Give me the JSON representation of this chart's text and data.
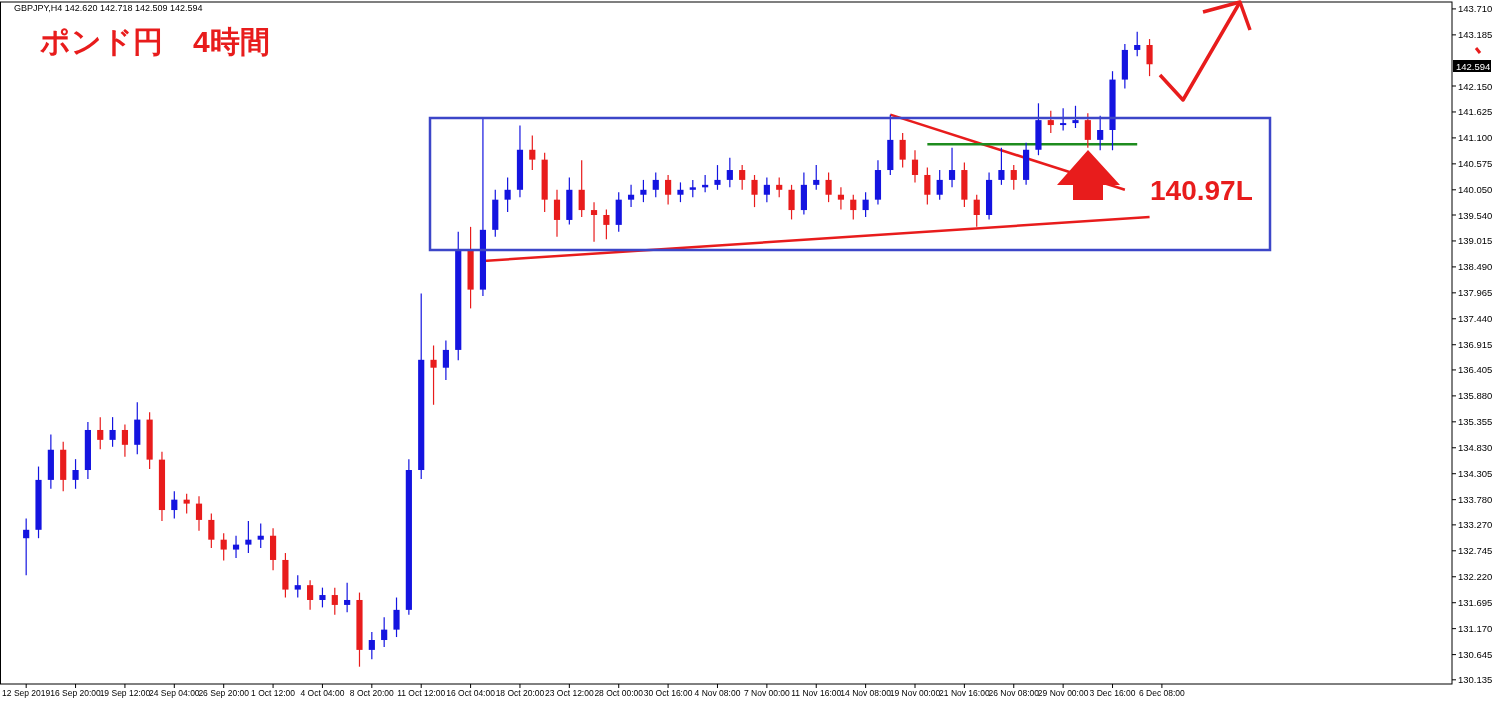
{
  "chart_data": {
    "type": "candlestick",
    "title": "ポンド円　4時間",
    "annotations": [
      "GBPJPY,H4  142.620 142.718 142.509 142.594",
      "140.97L",
      "142.594"
    ],
    "categories": [
      "12 Sep 2019",
      null,
      null,
      null,
      "16 Sep 20:00",
      null,
      null,
      null,
      "19 Sep 12:00",
      null,
      null,
      null,
      "24 Sep 04:00",
      null,
      null,
      null,
      "26 Sep 20:00",
      null,
      null,
      null,
      "1 Oct 12:00",
      null,
      null,
      null,
      "4 Oct 04:00",
      null,
      null,
      null,
      "8 Oct 20:00",
      null,
      null,
      null,
      "11 Oct 12:00",
      null,
      null,
      null,
      "16 Oct 04:00",
      null,
      null,
      null,
      "18 Oct 20:00",
      null,
      null,
      null,
      "23 Oct 12:00",
      null,
      null,
      null,
      "28 Oct 00:00",
      null,
      null,
      null,
      "30 Oct 16:00",
      null,
      null,
      null,
      "4 Nov 08:00",
      null,
      null,
      null,
      "7 Nov 00:00",
      null,
      null,
      null,
      "11 Nov 16:00",
      null,
      null,
      null,
      "14 Nov 08:00",
      null,
      null,
      null,
      "19 Nov 00:00",
      null,
      null,
      null,
      "21 Nov 16:00",
      null,
      null,
      null,
      "26 Nov 08:00",
      null,
      null,
      null,
      "29 Nov 00:00",
      null,
      null,
      null,
      "3 Dec 16:00",
      null,
      null,
      null,
      "6 Dec 08:00",
      null,
      null,
      null,
      null,
      null,
      null,
      null,
      null,
      null,
      null,
      null,
      null,
      null,
      null,
      null,
      null,
      null,
      null,
      null,
      null,
      null,
      null,
      null
    ],
    "ohlc": [
      [
        133.0,
        133.4,
        132.25,
        133.17
      ],
      [
        133.17,
        134.45,
        133.0,
        134.18
      ],
      [
        134.18,
        135.1,
        134.0,
        134.79
      ],
      [
        134.79,
        134.95,
        133.95,
        134.18
      ],
      [
        134.18,
        134.6,
        134.0,
        134.38
      ],
      [
        134.38,
        135.35,
        134.2,
        135.19
      ],
      [
        135.19,
        135.45,
        134.8,
        134.99
      ],
      [
        134.99,
        135.45,
        134.85,
        135.19
      ],
      [
        135.19,
        135.3,
        134.65,
        134.89
      ],
      [
        134.89,
        135.75,
        134.7,
        135.4
      ],
      [
        135.4,
        135.55,
        134.4,
        134.59
      ],
      [
        134.59,
        134.75,
        133.35,
        133.57
      ],
      [
        133.57,
        133.95,
        133.4,
        133.78
      ],
      [
        133.78,
        133.9,
        133.5,
        133.7
      ],
      [
        133.7,
        133.85,
        133.15,
        133.37
      ],
      [
        133.37,
        133.5,
        132.8,
        132.97
      ],
      [
        132.97,
        133.1,
        132.55,
        132.77
      ],
      [
        132.77,
        133.05,
        132.6,
        132.87
      ],
      [
        132.87,
        133.35,
        132.7,
        132.97
      ],
      [
        132.97,
        133.3,
        132.8,
        133.05
      ],
      [
        133.05,
        133.2,
        132.35,
        132.56
      ],
      [
        132.56,
        132.7,
        131.8,
        131.96
      ],
      [
        131.96,
        132.25,
        131.8,
        132.05
      ],
      [
        132.05,
        132.15,
        131.55,
        131.75
      ],
      [
        131.75,
        132.0,
        131.6,
        131.85
      ],
      [
        131.85,
        132.0,
        131.45,
        131.65
      ],
      [
        131.65,
        132.1,
        131.5,
        131.75
      ],
      [
        131.75,
        131.9,
        130.4,
        130.74
      ],
      [
        130.74,
        131.1,
        130.55,
        130.94
      ],
      [
        130.94,
        131.4,
        130.8,
        131.15
      ],
      [
        131.15,
        131.8,
        131.0,
        131.55
      ],
      [
        131.55,
        134.6,
        131.45,
        134.38
      ],
      [
        134.38,
        137.95,
        134.2,
        136.61
      ],
      [
        136.61,
        136.9,
        135.7,
        136.45
      ],
      [
        136.45,
        137.0,
        136.2,
        136.81
      ],
      [
        136.81,
        139.2,
        136.6,
        138.83
      ],
      [
        138.83,
        139.3,
        137.65,
        138.03
      ],
      [
        138.03,
        141.5,
        137.9,
        139.24
      ],
      [
        139.24,
        140.05,
        139.1,
        139.85
      ],
      [
        139.85,
        140.3,
        139.6,
        140.05
      ],
      [
        140.05,
        141.35,
        139.9,
        140.86
      ],
      [
        140.86,
        141.15,
        140.45,
        140.66
      ],
      [
        140.66,
        140.8,
        139.6,
        139.85
      ],
      [
        139.85,
        140.05,
        139.1,
        139.44
      ],
      [
        139.44,
        140.3,
        139.35,
        140.05
      ],
      [
        140.05,
        140.65,
        139.5,
        139.64
      ],
      [
        139.64,
        139.8,
        139.0,
        139.54
      ],
      [
        139.54,
        139.65,
        139.05,
        139.34
      ],
      [
        139.34,
        140.0,
        139.2,
        139.85
      ],
      [
        139.85,
        140.15,
        139.7,
        139.95
      ],
      [
        139.95,
        140.25,
        139.8,
        140.05
      ],
      [
        140.05,
        140.4,
        139.9,
        140.25
      ],
      [
        140.25,
        140.35,
        139.75,
        139.95
      ],
      [
        139.95,
        140.2,
        139.8,
        140.05
      ],
      [
        140.05,
        140.25,
        139.9,
        140.1
      ],
      [
        140.1,
        140.35,
        140.0,
        140.15
      ],
      [
        140.15,
        140.55,
        140.05,
        140.25
      ],
      [
        140.25,
        140.7,
        140.1,
        140.45
      ],
      [
        140.45,
        140.55,
        140.05,
        140.25
      ],
      [
        140.25,
        140.35,
        139.7,
        139.95
      ],
      [
        139.95,
        140.3,
        139.8,
        140.15
      ],
      [
        140.15,
        140.3,
        139.9,
        140.05
      ],
      [
        140.05,
        140.15,
        139.45,
        139.64
      ],
      [
        139.64,
        140.4,
        139.55,
        140.15
      ],
      [
        140.15,
        140.55,
        140.05,
        140.25
      ],
      [
        140.25,
        140.4,
        139.8,
        139.95
      ],
      [
        139.95,
        140.1,
        139.65,
        139.85
      ],
      [
        139.85,
        139.95,
        139.45,
        139.64
      ],
      [
        139.64,
        140.0,
        139.5,
        139.85
      ],
      [
        139.85,
        140.65,
        139.75,
        140.45
      ],
      [
        140.45,
        141.57,
        140.35,
        141.06
      ],
      [
        141.06,
        141.2,
        140.5,
        140.66
      ],
      [
        140.66,
        140.85,
        140.2,
        140.35
      ],
      [
        140.35,
        140.5,
        139.75,
        139.95
      ],
      [
        139.95,
        140.45,
        139.85,
        140.25
      ],
      [
        140.25,
        140.9,
        140.1,
        140.45
      ],
      [
        140.45,
        140.6,
        139.7,
        139.85
      ],
      [
        139.85,
        139.95,
        139.3,
        139.54
      ],
      [
        139.54,
        140.4,
        139.45,
        140.25
      ],
      [
        140.25,
        140.9,
        140.15,
        140.45
      ],
      [
        140.45,
        140.55,
        140.05,
        140.25
      ],
      [
        140.25,
        141.0,
        140.15,
        140.86
      ],
      [
        140.86,
        141.8,
        140.75,
        141.46
      ],
      [
        141.46,
        141.65,
        141.2,
        141.36
      ],
      [
        141.36,
        141.7,
        141.25,
        141.4
      ],
      [
        141.4,
        141.75,
        141.3,
        141.46
      ],
      [
        141.46,
        141.6,
        140.9,
        141.06
      ],
      [
        141.06,
        141.55,
        140.85,
        141.26
      ],
      [
        141.26,
        142.45,
        140.85,
        142.28
      ],
      [
        142.28,
        143.0,
        142.1,
        142.88
      ],
      [
        142.88,
        143.25,
        142.75,
        142.98
      ],
      [
        142.98,
        143.1,
        142.35,
        142.59
      ],
      null,
      null,
      null,
      null,
      null,
      null,
      null,
      null,
      null,
      null,
      null,
      null,
      null,
      null,
      null,
      null,
      null,
      null,
      null,
      null,
      null,
      null,
      null,
      null
    ],
    "colors": [
      "#1414e0",
      "#1414e0",
      "#1414e0",
      "#e81c1c",
      "#1414e0",
      "#1414e0",
      "#e81c1c",
      "#1414e0",
      "#e81c1c",
      "#1414e0",
      "#e81c1c",
      "#e81c1c",
      "#1414e0",
      "#e81c1c",
      "#e81c1c",
      "#e81c1c",
      "#e81c1c",
      "#1414e0",
      "#1414e0",
      "#1414e0",
      "#e81c1c",
      "#e81c1c",
      "#1414e0",
      "#e81c1c",
      "#1414e0",
      "#e81c1c",
      "#1414e0",
      "#e81c1c",
      "#1414e0",
      "#1414e0",
      "#1414e0",
      "#1414e0",
      "#1414e0",
      "#e81c1c",
      "#1414e0",
      "#1414e0",
      "#e81c1c",
      "#1414e0",
      "#1414e0",
      "#1414e0",
      "#1414e0",
      "#e81c1c",
      "#e81c1c",
      "#e81c1c",
      "#1414e0",
      "#e81c1c",
      "#e81c1c",
      "#e81c1c",
      "#1414e0",
      "#1414e0",
      "#1414e0",
      "#1414e0",
      "#e81c1c",
      "#1414e0",
      "#1414e0",
      "#1414e0",
      "#1414e0",
      "#1414e0",
      "#e81c1c",
      "#e81c1c",
      "#1414e0",
      "#e81c1c",
      "#e81c1c",
      "#1414e0",
      "#1414e0",
      "#e81c1c",
      "#e81c1c",
      "#e81c1c",
      "#1414e0",
      "#1414e0",
      "#1414e0",
      "#e81c1c",
      "#e81c1c",
      "#e81c1c",
      "#1414e0",
      "#1414e0",
      "#e81c1c",
      "#e81c1c",
      "#1414e0",
      "#1414e0",
      "#e81c1c",
      "#1414e0",
      "#1414e0",
      "#e81c1c",
      "#1414e0",
      "#1414e0",
      "#e81c1c",
      "#1414e0",
      "#1414e0",
      "#1414e0",
      "#1414e0",
      "#e81c1c",
      null,
      null,
      null,
      null,
      null,
      null,
      null,
      null,
      null,
      null,
      null,
      null,
      null,
      null,
      null,
      null,
      null,
      null,
      null,
      null,
      null,
      null,
      null,
      null
    ],
    "series": [
      {
        "type": "line",
        "color": "#e81c1c",
        "values": [
          null,
          null,
          null,
          null,
          null,
          null,
          null,
          null,
          null,
          null,
          null,
          null,
          null,
          null,
          null,
          null,
          null,
          null,
          null,
          null,
          null,
          null,
          null,
          null,
          null,
          null,
          null,
          null,
          null,
          null,
          null,
          null,
          null,
          null,
          null,
          null,
          null,
          138.61,
          null,
          null,
          null,
          null,
          null,
          null,
          null,
          null,
          null,
          null,
          null,
          null,
          null,
          null,
          null,
          null,
          null,
          null,
          null,
          null,
          null,
          null,
          null,
          null,
          null,
          null,
          null,
          null,
          null,
          null,
          null,
          null,
          null,
          null,
          null,
          null,
          null,
          null,
          null,
          null,
          null,
          null,
          null,
          null,
          null,
          null,
          null,
          null,
          null,
          null,
          null,
          null,
          null,
          139.5,
          null,
          null,
          null,
          null,
          null,
          null,
          null,
          null,
          null,
          null,
          null,
          null,
          null,
          null,
          null,
          null,
          null,
          null,
          null,
          null,
          null,
          null,
          null,
          null
        ]
      },
      {
        "type": "line",
        "color": "#e81c1c",
        "values": [
          null,
          null,
          null,
          null,
          null,
          null,
          null,
          null,
          null,
          null,
          null,
          null,
          null,
          null,
          null,
          null,
          null,
          null,
          null,
          null,
          null,
          null,
          null,
          null,
          null,
          null,
          null,
          null,
          null,
          null,
          null,
          null,
          null,
          null,
          null,
          null,
          null,
          null,
          null,
          null,
          null,
          null,
          null,
          null,
          null,
          null,
          null,
          null,
          null,
          null,
          null,
          null,
          null,
          null,
          null,
          null,
          null,
          null,
          null,
          null,
          null,
          null,
          null,
          null,
          null,
          null,
          null,
          null,
          null,
          null,
          141.57,
          null,
          null,
          null,
          null,
          null,
          null,
          null,
          null,
          null,
          null,
          null,
          null,
          null,
          null,
          null,
          null,
          null,
          null,
          140.05,
          null,
          null,
          null,
          null,
          null,
          null,
          null,
          null,
          null,
          null,
          null,
          null,
          null,
          null,
          null,
          null,
          null,
          null,
          null,
          null,
          null,
          null,
          null,
          null,
          null,
          null
        ]
      },
      {
        "type": "line",
        "color": "#1e8c1e",
        "values": [
          null,
          null,
          null,
          null,
          null,
          null,
          null,
          null,
          null,
          null,
          null,
          null,
          null,
          null,
          null,
          null,
          null,
          null,
          null,
          null,
          null,
          null,
          null,
          null,
          null,
          null,
          null,
          null,
          null,
          null,
          null,
          null,
          null,
          null,
          null,
          null,
          null,
          null,
          null,
          null,
          null,
          null,
          null,
          null,
          null,
          null,
          null,
          null,
          null,
          null,
          null,
          null,
          null,
          null,
          null,
          null,
          null,
          null,
          null,
          null,
          null,
          null,
          null,
          null,
          null,
          null,
          null,
          null,
          null,
          null,
          null,
          null,
          null,
          140.97,
          null,
          null,
          null,
          null,
          null,
          null,
          null,
          null,
          null,
          null,
          null,
          null,
          null,
          null,
          null,
          null,
          140.97,
          null,
          null,
          null,
          null,
          null,
          null,
          null,
          null,
          null,
          null,
          null,
          null,
          null,
          null,
          null,
          null,
          null,
          null,
          null,
          null,
          null,
          null,
          null,
          null,
          null
        ]
      }
    ],
    "ylim": [
      130.05,
      143.85
    ],
    "yticks": [
      {
        "value": 143.71,
        "label": "143.710"
      },
      143.185,
      {
        "value": 142.15,
        "label": "142.150"
      },
      141.625,
      {
        "value": 141.1,
        "label": "141.100"
      },
      140.575,
      {
        "value": 140.05,
        "label": "140.050"
      },
      {
        "value": 139.54,
        "label": "139.540"
      },
      139.015,
      {
        "value": 138.49,
        "label": "138.490"
      },
      137.965,
      {
        "value": 137.44,
        "label": "137.440"
      },
      136.915,
      136.405,
      {
        "value": 135.88,
        "label": "135.880"
      },
      135.355,
      {
        "value": 134.83,
        "label": "134.830"
      },
      134.305,
      {
        "value": 133.78,
        "label": "133.780"
      },
      {
        "value": 133.27,
        "label": "133.270"
      },
      132.745,
      {
        "value": 132.22,
        "label": "132.220"
      },
      131.695,
      {
        "value": 131.17,
        "label": "131.170"
      },
      130.645,
      130.135
    ]
  }
}
